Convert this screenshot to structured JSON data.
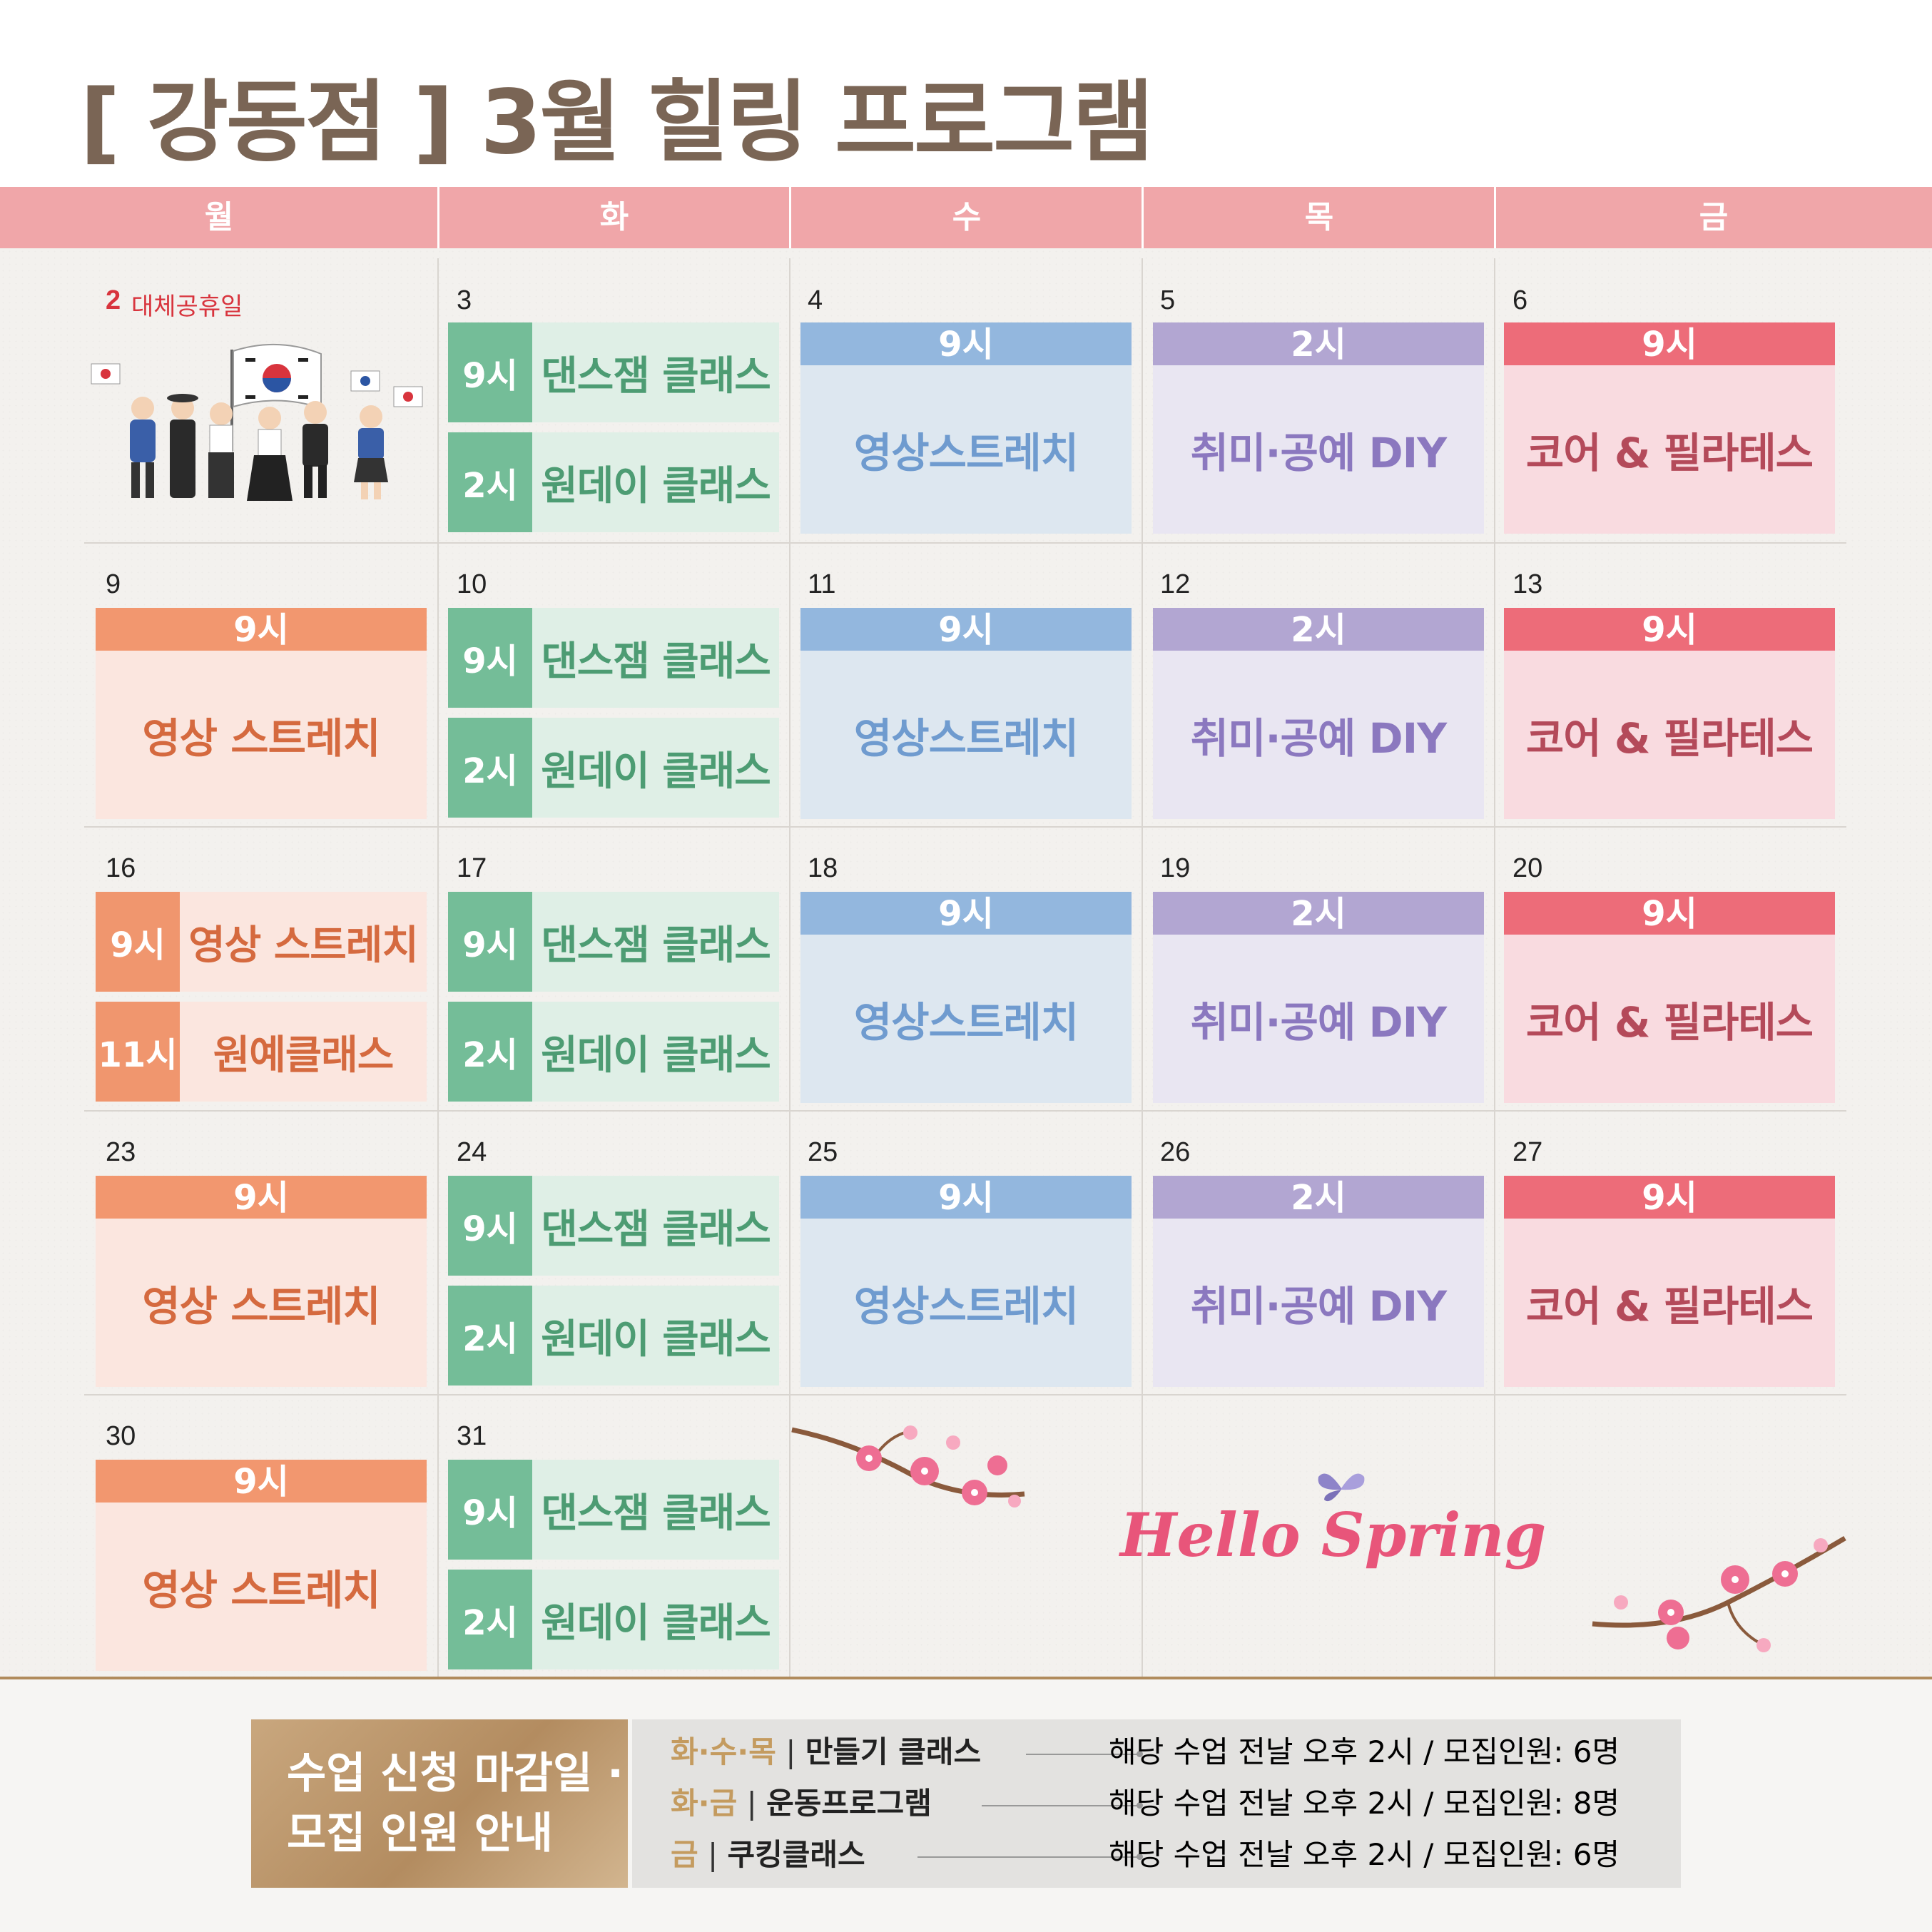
{
  "title": "[ 강동점 ] 3월 힐링 프로그램",
  "weekdays": [
    "월",
    "화",
    "수",
    "목",
    "금"
  ],
  "days": {
    "d2": "2",
    "holiday_label": "대체공휴일",
    "d3": "3",
    "d4": "4",
    "d5": "5",
    "d6": "6",
    "d9": "9",
    "d10": "10",
    "d11": "11",
    "d12": "12",
    "d13": "13",
    "d16": "16",
    "d17": "17",
    "d18": "18",
    "d19": "19",
    "d20": "20",
    "d23": "23",
    "d24": "24",
    "d25": "25",
    "d26": "26",
    "d27": "27",
    "d30": "30",
    "d31": "31"
  },
  "classes": {
    "t9": "9시",
    "t2": "2시",
    "t11": "11시",
    "dance_jam": "댄스잼 클래스",
    "oneday": "원데이 클래스",
    "video_stretch": "영상스트레치",
    "video_stretch_spaced": "영상 스트레치",
    "hobby_diy": "취미·공예 DIY",
    "core_pilates": "코어 & 필라테스",
    "garden": "원예클래스"
  },
  "decoration": {
    "hello_spring": "Hello Spring"
  },
  "colors": {
    "header": "#f0a6a9",
    "green": "#74bd98",
    "orange": "#f2976f",
    "blue": "#93b7de",
    "purple": "#b2a6d2",
    "red": "#ed6c79",
    "title": "#7a6555"
  },
  "footer": {
    "notice_line1": "수업 신청 마감일 ·",
    "notice_line2": "모집 인원 안내",
    "rows": [
      {
        "days": "화·수·목",
        "sep": " | ",
        "program": "만들기 클래스",
        "detail": "해당 수업 전날 오후 2시 / 모집인원: 6명"
      },
      {
        "days": "화·금",
        "sep": " | ",
        "program": "운동프로그램",
        "detail": "해당 수업 전날 오후 2시 / 모집인원: 8명"
      },
      {
        "days": "금",
        "sep": " | ",
        "program": "쿠킹클래스",
        "detail": "해당 수업 전날 오후 2시 / 모집인원: 6명"
      }
    ]
  }
}
